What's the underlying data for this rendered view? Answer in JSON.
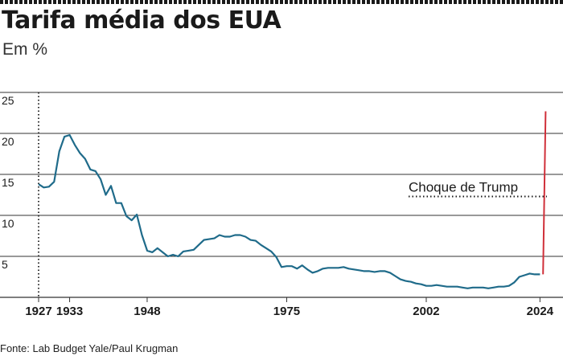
{
  "header": {
    "title": "Tarifa média dos EUA",
    "subtitle": "Em %"
  },
  "footer": {
    "source": "Fonte: Lab Budget Yale/Paul Krugman"
  },
  "colors": {
    "series_line": "#1f6b8a",
    "projection_line": "#d0303a",
    "gridline": "#333333",
    "text": "#1a1a1a"
  },
  "chart_data": {
    "type": "line",
    "title": "Tarifa média dos EUA",
    "subtitle": "Em %",
    "xlabel": "",
    "ylabel": "",
    "xlim": [
      1927,
      2025.5
    ],
    "ylim": [
      0,
      25
    ],
    "yticks": [
      5,
      10,
      15,
      20,
      25
    ],
    "xticks": [
      1927,
      1933,
      1948,
      1975,
      2002,
      2024
    ],
    "grid": "horizontal",
    "series": [
      {
        "values": [
          [
            1927,
            13.8
          ],
          [
            1928,
            13.4
          ],
          [
            1929,
            13.5
          ],
          [
            1930,
            14.1
          ],
          [
            1931,
            17.8
          ],
          [
            1932,
            19.6
          ],
          [
            1933,
            19.8
          ],
          [
            1934,
            18.6
          ],
          [
            1935,
            17.6
          ],
          [
            1936,
            16.9
          ],
          [
            1937,
            15.6
          ],
          [
            1938,
            15.4
          ],
          [
            1939,
            14.4
          ],
          [
            1940,
            12.5
          ],
          [
            1941,
            13.6
          ],
          [
            1942,
            11.5
          ],
          [
            1943,
            11.5
          ],
          [
            1944,
            9.9
          ],
          [
            1945,
            9.4
          ],
          [
            1946,
            10.1
          ],
          [
            1947,
            7.6
          ],
          [
            1948,
            5.7
          ],
          [
            1949,
            5.5
          ],
          [
            1950,
            6.0
          ],
          [
            1951,
            5.5
          ],
          [
            1952,
            5.0
          ],
          [
            1953,
            5.2
          ],
          [
            1954,
            5.0
          ],
          [
            1955,
            5.6
          ],
          [
            1956,
            5.7
          ],
          [
            1957,
            5.8
          ],
          [
            1958,
            6.4
          ],
          [
            1959,
            7.0
          ],
          [
            1960,
            7.1
          ],
          [
            1961,
            7.2
          ],
          [
            1962,
            7.6
          ],
          [
            1963,
            7.4
          ],
          [
            1964,
            7.4
          ],
          [
            1965,
            7.6
          ],
          [
            1966,
            7.6
          ],
          [
            1967,
            7.4
          ],
          [
            1968,
            7.0
          ],
          [
            1969,
            6.9
          ],
          [
            1970,
            6.4
          ],
          [
            1971,
            6.0
          ],
          [
            1972,
            5.6
          ],
          [
            1973,
            4.9
          ],
          [
            1974,
            3.7
          ],
          [
            1975,
            3.8
          ],
          [
            1976,
            3.8
          ],
          [
            1977,
            3.5
          ],
          [
            1978,
            3.9
          ],
          [
            1979,
            3.4
          ],
          [
            1980,
            3.0
          ],
          [
            1981,
            3.2
          ],
          [
            1982,
            3.5
          ],
          [
            1983,
            3.6
          ],
          [
            1984,
            3.6
          ],
          [
            1985,
            3.6
          ],
          [
            1986,
            3.7
          ],
          [
            1987,
            3.5
          ],
          [
            1988,
            3.4
          ],
          [
            1989,
            3.3
          ],
          [
            1990,
            3.2
          ],
          [
            1991,
            3.2
          ],
          [
            1992,
            3.1
          ],
          [
            1993,
            3.2
          ],
          [
            1994,
            3.2
          ],
          [
            1995,
            3.0
          ],
          [
            1996,
            2.6
          ],
          [
            1997,
            2.2
          ],
          [
            1998,
            2.0
          ],
          [
            1999,
            1.9
          ],
          [
            2000,
            1.7
          ],
          [
            2001,
            1.6
          ],
          [
            2002,
            1.4
          ],
          [
            2003,
            1.4
          ],
          [
            2004,
            1.5
          ],
          [
            2005,
            1.4
          ],
          [
            2006,
            1.3
          ],
          [
            2007,
            1.3
          ],
          [
            2008,
            1.3
          ],
          [
            2009,
            1.2
          ],
          [
            2010,
            1.1
          ],
          [
            2011,
            1.2
          ],
          [
            2012,
            1.2
          ],
          [
            2013,
            1.2
          ],
          [
            2014,
            1.1
          ],
          [
            2015,
            1.2
          ],
          [
            2016,
            1.3
          ],
          [
            2017,
            1.3
          ],
          [
            2018,
            1.4
          ],
          [
            2019,
            1.8
          ],
          [
            2020,
            2.5
          ],
          [
            2021,
            2.7
          ],
          [
            2022,
            2.9
          ],
          [
            2023,
            2.8
          ],
          [
            2024,
            2.8
          ]
        ]
      },
      {
        "values": [
          [
            2024.6,
            2.8
          ],
          [
            2025.1,
            22.7
          ]
        ]
      }
    ],
    "reference_years": [
      1927
    ],
    "annotations": [
      {
        "text": "Choque de Trump",
        "value": 12.3
      }
    ]
  }
}
